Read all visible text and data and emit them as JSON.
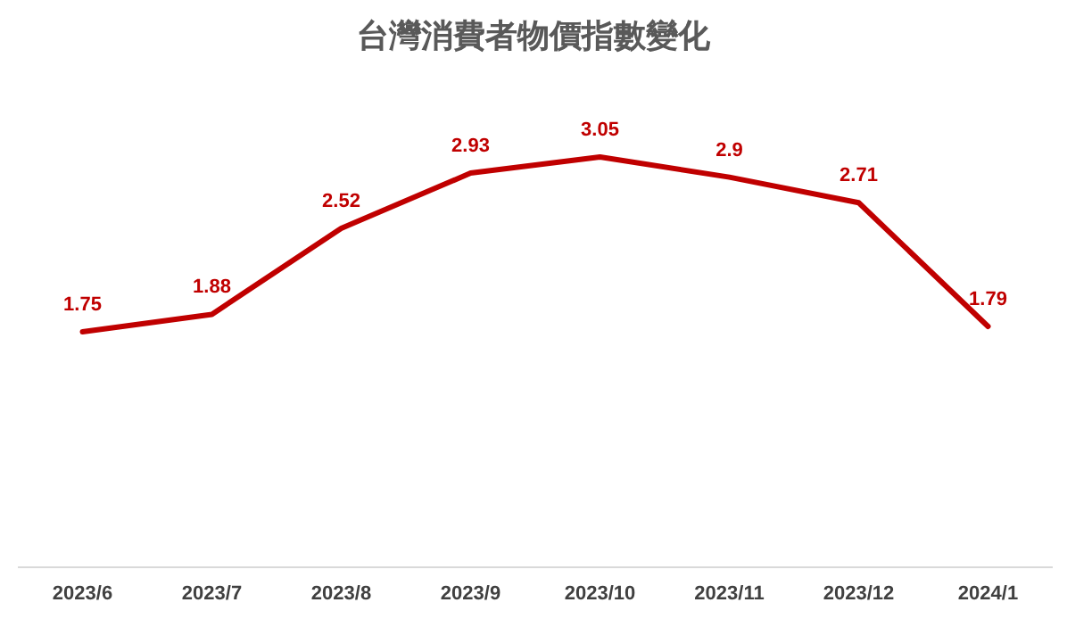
{
  "chart_data": {
    "type": "line",
    "title": "台灣消費者物價指數變化",
    "categories": [
      "2023/6",
      "2023/7",
      "2023/8",
      "2023/9",
      "2023/10",
      "2023/11",
      "2023/12",
      "2024/1"
    ],
    "series": [
      {
        "color": "#c00000",
        "values": [
          1.75,
          1.88,
          2.52,
          2.93,
          3.05,
          2.9,
          2.71,
          1.79
        ]
      }
    ],
    "data_labels": true,
    "marker": "none",
    "line_style": "solid"
  }
}
